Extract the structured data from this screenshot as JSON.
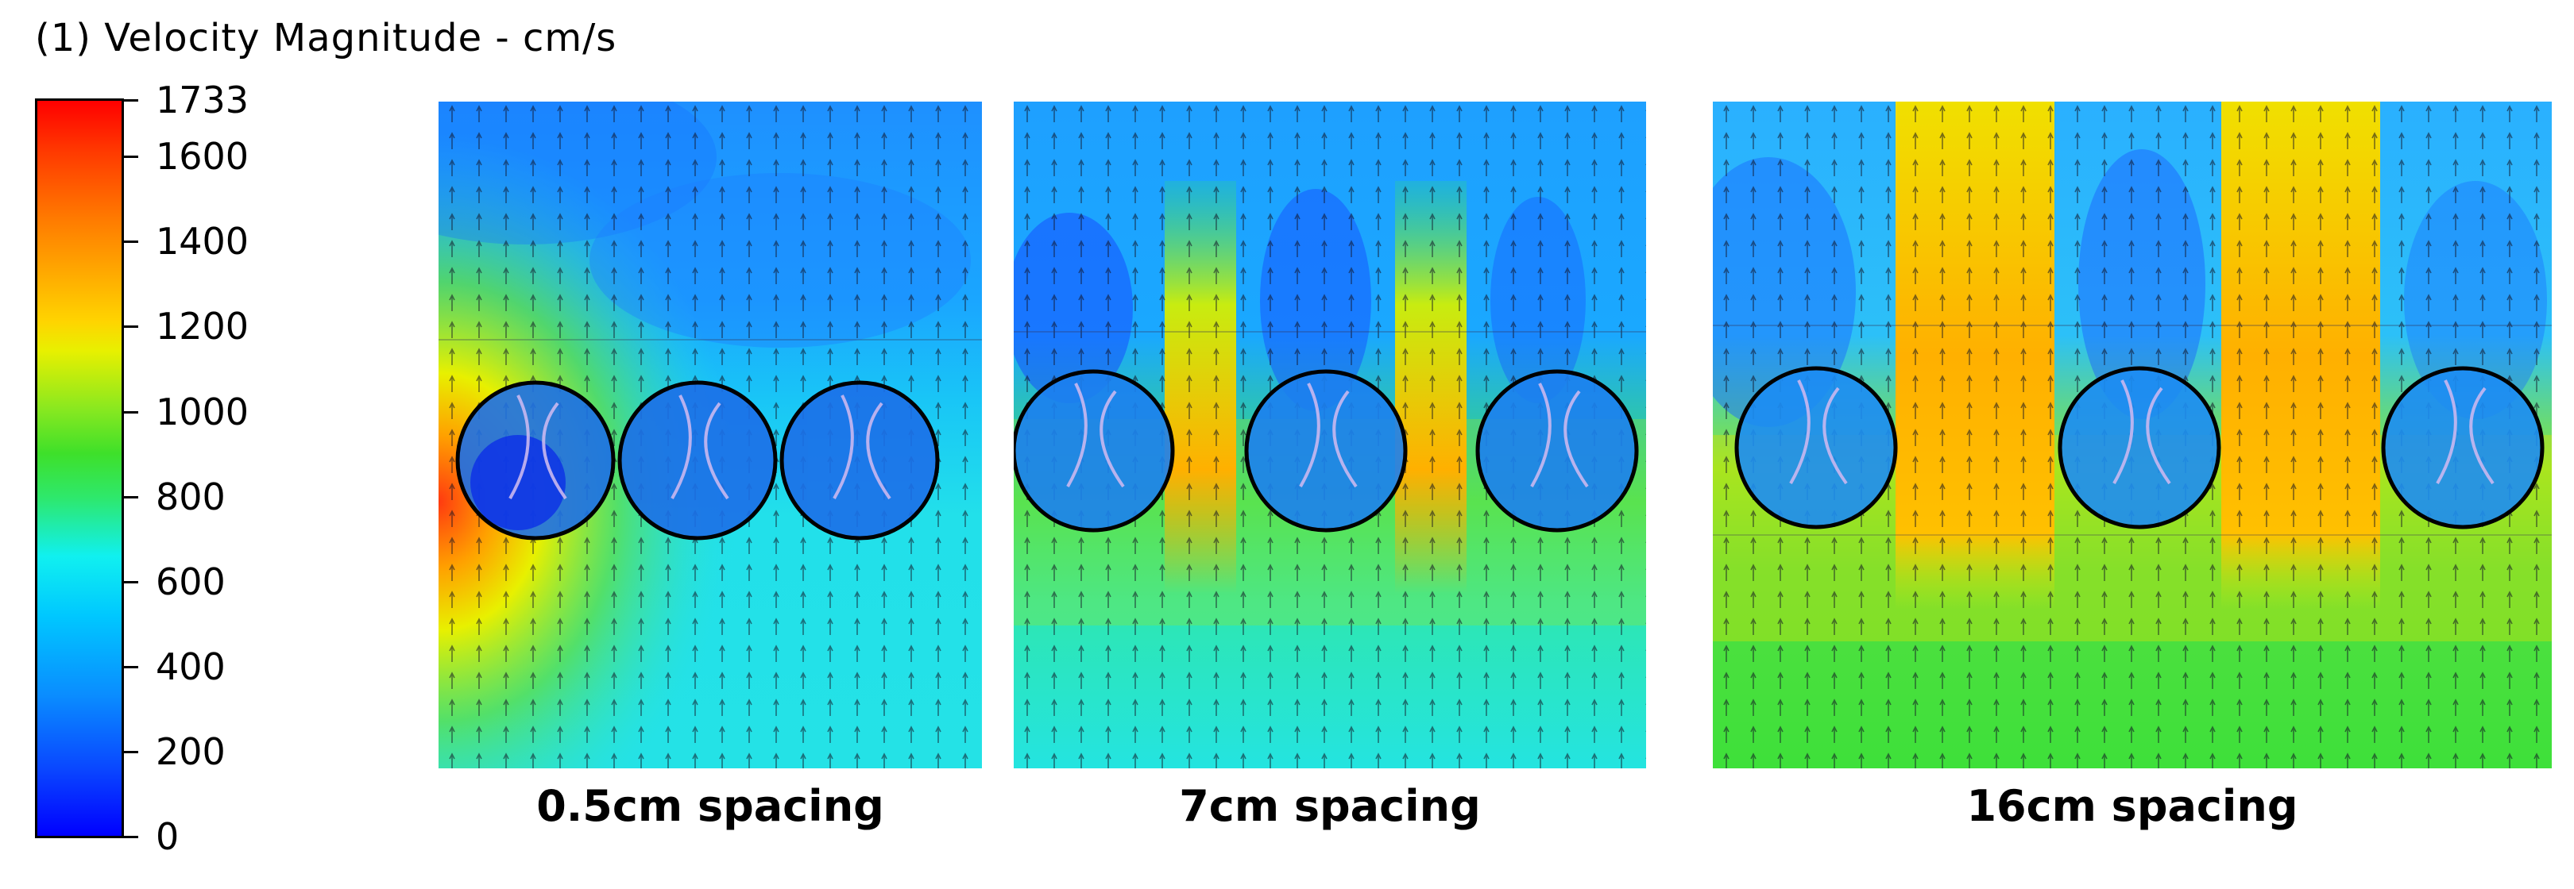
{
  "legend": {
    "title": "(1) Velocity Magnitude - cm/s",
    "ticks": [
      {
        "label": "1733",
        "value": 1733
      },
      {
        "label": "1600",
        "value": 1600
      },
      {
        "label": "1400",
        "value": 1400
      },
      {
        "label": "1200",
        "value": 1200
      },
      {
        "label": "1000",
        "value": 1000
      },
      {
        "label": "800",
        "value": 800
      },
      {
        "label": "600",
        "value": 600
      },
      {
        "label": "400",
        "value": 400
      },
      {
        "label": "200",
        "value": 200
      },
      {
        "label": "0",
        "value": 0
      }
    ],
    "min": 0,
    "max": 1733
  },
  "panels": [
    {
      "caption": "0.5cm spacing",
      "rotor_count": 3
    },
    {
      "caption": "7cm spacing",
      "rotor_count": 3
    },
    {
      "caption": "16cm spacing",
      "rotor_count": 3
    }
  ],
  "colors": {
    "low": "#0000ff",
    "mid": "#10f0f0",
    "green": "#3ee02a",
    "yellow": "#e8f000",
    "orange": "#ffa000",
    "high": "#ff0000"
  }
}
